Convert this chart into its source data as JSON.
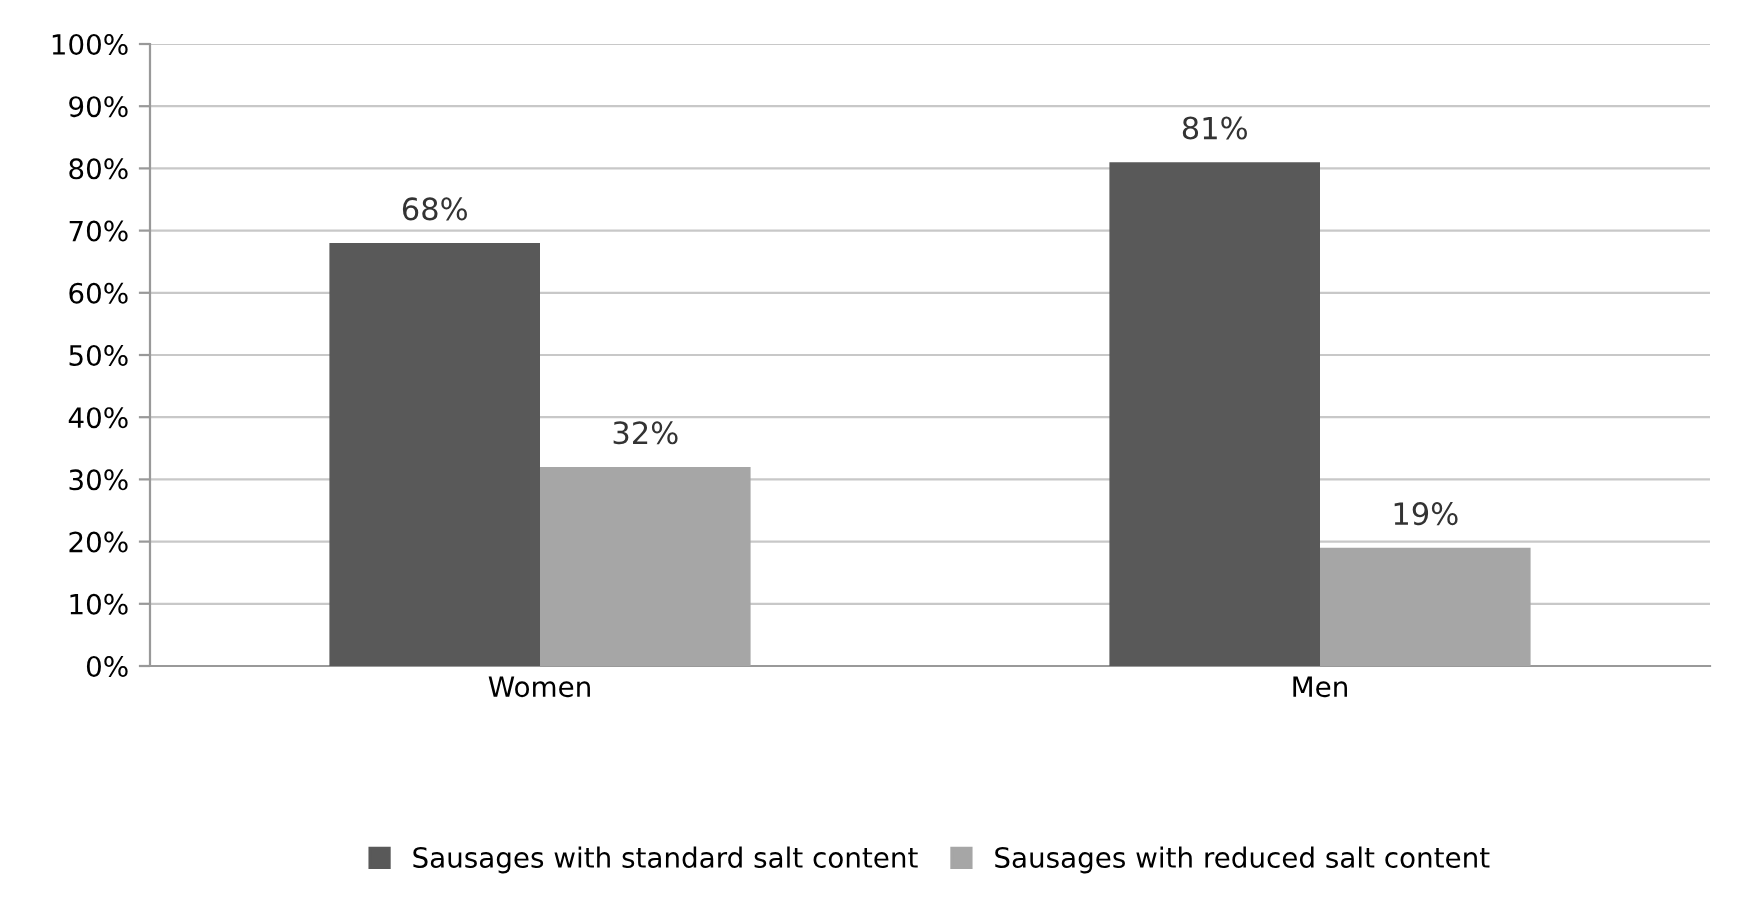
{
  "chart_data": {
    "type": "bar",
    "categories": [
      "Women",
      "Men"
    ],
    "series": [
      {
        "name": "Sausages with standard salt content",
        "color": "#595959",
        "values": [
          68,
          81
        ],
        "value_labels": [
          "68%",
          "81%"
        ]
      },
      {
        "name": "Sausages with reduced salt content",
        "color": "#a6a6a6",
        "values": [
          32,
          19
        ],
        "value_labels": [
          "32%",
          "19%"
        ]
      }
    ],
    "ylim": [
      0,
      100
    ],
    "yticks": [
      {
        "value": 0,
        "label": "0%"
      },
      {
        "value": 10,
        "label": "10%"
      },
      {
        "value": 20,
        "label": "20%"
      },
      {
        "value": 30,
        "label": "30%"
      },
      {
        "value": 40,
        "label": "40%"
      },
      {
        "value": 50,
        "label": "50%"
      },
      {
        "value": 60,
        "label": "60%"
      },
      {
        "value": 70,
        "label": "70%"
      },
      {
        "value": 80,
        "label": "80%"
      },
      {
        "value": 90,
        "label": "90%"
      },
      {
        "value": 100,
        "label": "100%"
      }
    ],
    "grid": "y",
    "legend": "bottom"
  }
}
